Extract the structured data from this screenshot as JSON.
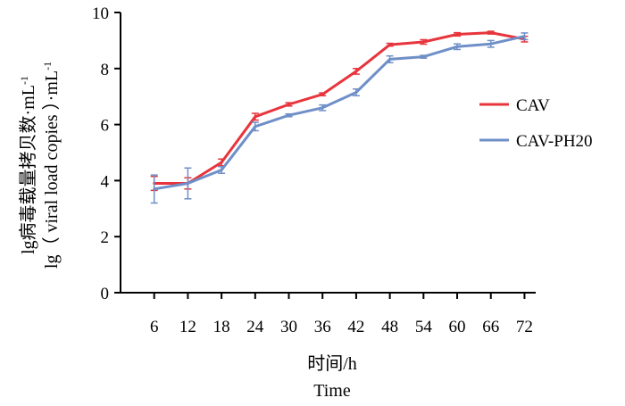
{
  "chart_data": {
    "type": "line",
    "title": "",
    "xlabel": [
      "时间/h",
      "Time"
    ],
    "ylabel": [
      "lg病毒载量拷贝数·mL",
      "lg（ viral load copies ）·mL"
    ],
    "ylabel_superscript": "-1",
    "x": [
      6,
      12,
      18,
      24,
      30,
      36,
      42,
      48,
      54,
      60,
      66,
      72
    ],
    "xlim": [
      0,
      74
    ],
    "ylim": [
      0,
      10
    ],
    "x_ticks": [
      "6",
      "12",
      "18",
      "24",
      "30",
      "36",
      "42",
      "48",
      "54",
      "60",
      "66",
      "72"
    ],
    "y_ticks": [
      "0",
      "2",
      "4",
      "6",
      "8",
      "10"
    ],
    "grid": false,
    "legend_position": "right",
    "series": [
      {
        "name": "CAV",
        "color": "#e8343c",
        "values": [
          3.9,
          3.9,
          4.65,
          6.28,
          6.72,
          7.08,
          7.9,
          8.85,
          8.95,
          9.22,
          9.28,
          9.05
        ],
        "errors": [
          0.25,
          0.2,
          0.12,
          0.12,
          0.06,
          0.05,
          0.1,
          0.05,
          0.08,
          0.06,
          0.05,
          0.1
        ]
      },
      {
        "name": "CAV-PH20",
        "color": "#6f8fc7",
        "values": [
          3.7,
          3.9,
          4.38,
          5.93,
          6.33,
          6.6,
          7.15,
          8.33,
          8.42,
          8.78,
          8.88,
          9.15
        ],
        "errors": [
          0.5,
          0.55,
          0.12,
          0.15,
          0.05,
          0.1,
          0.12,
          0.12,
          0.05,
          0.1,
          0.12,
          0.12
        ]
      }
    ]
  }
}
